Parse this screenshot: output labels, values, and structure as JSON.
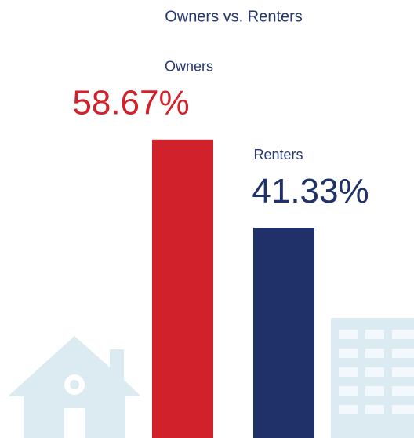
{
  "chart_data": {
    "type": "bar",
    "title": "Owners vs. Renters",
    "categories": [
      "Owners",
      "Renters"
    ],
    "values": [
      58.67,
      41.33
    ],
    "value_labels": [
      "58.67%",
      "41.33%"
    ],
    "colors": [
      "#d1222b",
      "#1f3168"
    ]
  }
}
